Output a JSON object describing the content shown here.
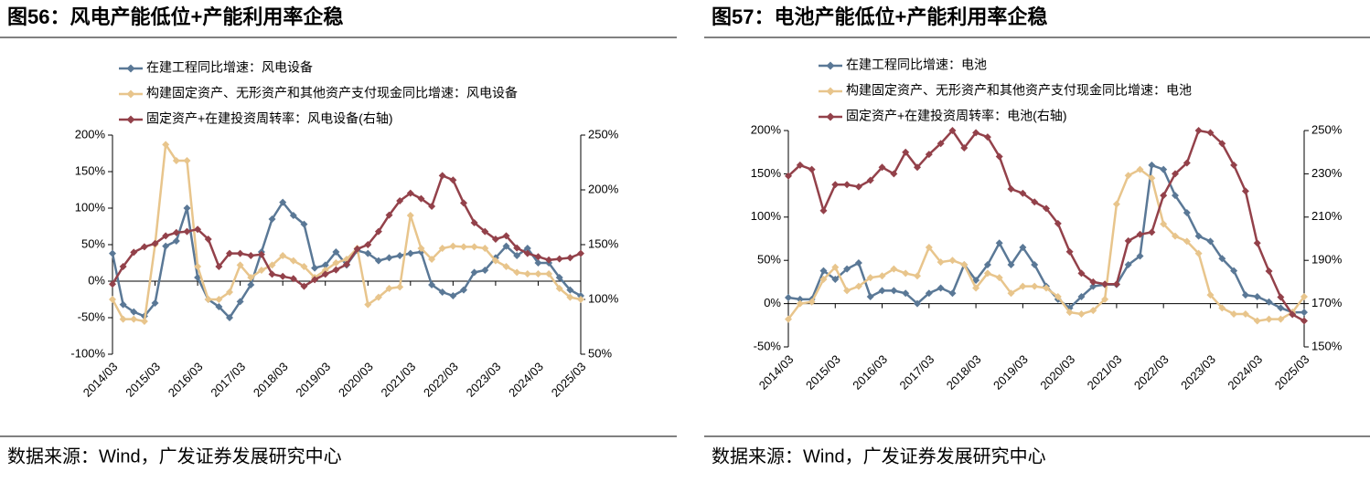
{
  "chart_data": [
    {
      "type": "line",
      "title": "图56：风电产能低位+产能利用率企稳",
      "source": "数据来源：Wind，广发证券发展研究中心",
      "categories": [
        "2014/03",
        null,
        null,
        null,
        "2015/03",
        null,
        null,
        null,
        "2016/03",
        null,
        null,
        null,
        "2017/03",
        null,
        null,
        null,
        "2018/03",
        null,
        null,
        null,
        "2019/03",
        null,
        null,
        null,
        "2020/03",
        null,
        null,
        null,
        "2021/03",
        null,
        null,
        null,
        "2022/03",
        null,
        null,
        null,
        "2023/03",
        null,
        null,
        null,
        "2024/03",
        null,
        null,
        null,
        "2025/03"
      ],
      "series": [
        {
          "name": "在建工程同比增速：风电设备",
          "color": "#5a7896",
          "values": [
            38,
            -32,
            -42,
            -48,
            -30,
            48,
            55,
            100,
            5,
            -25,
            -35,
            -50,
            -28,
            -5,
            40,
            85,
            108,
            90,
            78,
            18,
            22,
            40,
            22,
            42,
            38,
            28,
            32,
            35,
            38,
            40,
            -5,
            -15,
            -20,
            -12,
            12,
            15,
            32,
            48,
            35,
            45,
            25,
            25,
            5,
            -12,
            -20
          ]
        },
        {
          "name": "构建固定资产、无形资产和其他资产支付现金同比增速：风电设备",
          "color": "#e8c58c",
          "values": [
            -25,
            -52,
            -52,
            -55,
            50,
            187,
            165,
            165,
            20,
            -25,
            -25,
            -15,
            22,
            5,
            15,
            22,
            35,
            28,
            20,
            5,
            15,
            25,
            30,
            45,
            -32,
            -22,
            -10,
            -8,
            90,
            45,
            30,
            45,
            48,
            47,
            47,
            45,
            28,
            20,
            12,
            10,
            10,
            10,
            -10,
            -22,
            -25
          ]
        },
        {
          "name": "固定资产+在建投资周转率：风电设备(右轴)",
          "color": "#93414a",
          "axis": "y2",
          "values": [
            114,
            130,
            143,
            148,
            151,
            158,
            161,
            162,
            164,
            155,
            130,
            142,
            142,
            140,
            141,
            123,
            121,
            119,
            112,
            118,
            123,
            127,
            132,
            146,
            150,
            162,
            177,
            190,
            197,
            192,
            185,
            213,
            209,
            188,
            170,
            162,
            155,
            158,
            147,
            142,
            139,
            136,
            137,
            138,
            142
          ]
        }
      ],
      "ylim": [
        -100,
        200
      ],
      "yticks": [
        {
          "value": -100,
          "label": "-100%"
        },
        {
          "value": -50,
          "label": "-50%"
        },
        {
          "value": 0,
          "label": "0%"
        },
        {
          "value": 50,
          "label": "50%"
        },
        {
          "value": 100,
          "label": "100%"
        },
        {
          "value": 150,
          "label": "150%"
        },
        {
          "value": 200,
          "label": "200%"
        }
      ],
      "y2lim": [
        50,
        250
      ],
      "y2ticks": [
        {
          "value": 50,
          "label": "50%"
        },
        {
          "value": 100,
          "label": "100%"
        },
        {
          "value": 150,
          "label": "150%"
        },
        {
          "value": 200,
          "label": "200%"
        },
        {
          "value": 250,
          "label": "250%"
        }
      ]
    },
    {
      "type": "line",
      "title": "图57：电池产能低位+产能利用率企稳",
      "source": "数据来源：Wind，广发证券发展研究中心",
      "categories": [
        "2014/03",
        null,
        null,
        null,
        "2015/03",
        null,
        null,
        null,
        "2016/03",
        null,
        null,
        null,
        "2017/03",
        null,
        null,
        null,
        "2018/03",
        null,
        null,
        null,
        "2019/03",
        null,
        null,
        null,
        "2020/03",
        null,
        null,
        null,
        "2021/03",
        null,
        null,
        null,
        "2022/03",
        null,
        null,
        null,
        "2023/03",
        null,
        null,
        null,
        "2024/03",
        null,
        null,
        null,
        "2025/03"
      ],
      "series": [
        {
          "name": "在建工程同比增速：电池",
          "color": "#5a7896",
          "values": [
            7,
            5,
            5,
            38,
            28,
            40,
            47,
            8,
            15,
            15,
            12,
            0,
            12,
            18,
            12,
            45,
            27,
            45,
            70,
            45,
            65,
            45,
            20,
            5,
            -5,
            8,
            20,
            22,
            22,
            45,
            55,
            160,
            155,
            125,
            105,
            78,
            72,
            52,
            38,
            10,
            8,
            2,
            -5,
            -10,
            -10
          ]
        },
        {
          "name": "构建固定资产、无形资产和其他资产支付现金同比增速：电池",
          "color": "#e8c58c",
          "values": [
            -18,
            0,
            2,
            28,
            42,
            15,
            20,
            30,
            32,
            40,
            35,
            32,
            65,
            48,
            50,
            45,
            18,
            35,
            30,
            12,
            20,
            20,
            18,
            8,
            -10,
            -12,
            -8,
            5,
            115,
            148,
            155,
            145,
            92,
            78,
            72,
            58,
            10,
            -5,
            -12,
            -12,
            -20,
            -18,
            -18,
            -10,
            8
          ]
        },
        {
          "name": "固定资产+在建投资周转率：电池(右轴)",
          "color": "#93414a",
          "axis": "y2",
          "values": [
            229,
            234,
            232,
            213,
            225,
            225,
            224,
            227,
            233,
            230,
            240,
            233,
            239,
            244,
            250,
            242,
            249,
            247,
            238,
            223,
            221,
            217,
            214,
            207,
            194,
            184,
            180,
            179,
            179,
            199,
            202,
            203,
            220,
            230,
            235,
            250,
            249,
            244,
            234,
            222,
            198,
            185,
            173,
            165,
            162
          ]
        }
      ],
      "ylim": [
        -50,
        200
      ],
      "yticks": [
        {
          "value": -50,
          "label": "-50%"
        },
        {
          "value": 0,
          "label": "0%"
        },
        {
          "value": 50,
          "label": "50%"
        },
        {
          "value": 100,
          "label": "100%"
        },
        {
          "value": 150,
          "label": "150%"
        },
        {
          "value": 200,
          "label": "200%"
        }
      ],
      "y2lim": [
        150,
        250
      ],
      "y2ticks": [
        {
          "value": 150,
          "label": "150%"
        },
        {
          "value": 170,
          "label": "170%"
        },
        {
          "value": 190,
          "label": "190%"
        },
        {
          "value": 210,
          "label": "210%"
        },
        {
          "value": 230,
          "label": "230%"
        },
        {
          "value": 250,
          "label": "250%"
        }
      ]
    }
  ]
}
